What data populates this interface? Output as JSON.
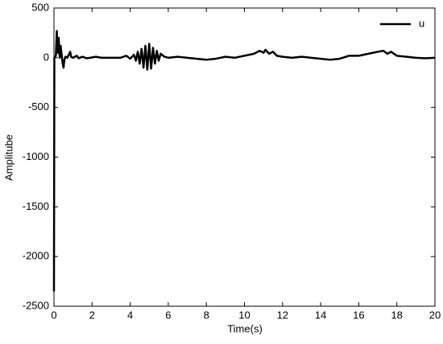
{
  "chart_data": {
    "type": "line",
    "xlabel": "Time(s)",
    "ylabel": "Amplitube",
    "x": [
      0,
      0.02,
      0.1,
      0.15,
      0.2,
      0.25,
      0.3,
      0.35,
      0.45,
      0.5,
      0.55,
      0.6,
      0.7,
      0.8,
      0.85,
      0.9,
      1.0,
      1.2,
      1.3,
      1.5,
      1.7,
      1.9,
      2.2,
      2.5,
      3,
      3.5,
      3.8,
      4.0,
      4.2,
      4.3,
      4.4,
      4.5,
      4.6,
      4.7,
      4.8,
      4.9,
      5.0,
      5.1,
      5.2,
      5.3,
      5.4,
      5.5,
      5.6,
      5.8,
      6.0,
      6.5,
      7,
      7.5,
      8,
      8.5,
      9,
      9.5,
      10,
      10.5,
      10.8,
      11,
      11.1,
      11.3,
      11.5,
      11.7,
      12,
      12.5,
      13,
      13.5,
      14,
      14.5,
      15,
      15.5,
      16,
      16.5,
      17,
      17.3,
      17.5,
      17.7,
      18,
      18.5,
      19,
      19.5,
      20
    ],
    "series": [
      {
        "name": "u",
        "color": "#000000",
        "values": [
          -2350,
          0,
          20,
          270,
          50,
          200,
          0,
          120,
          -50,
          -100,
          -20,
          10,
          0,
          40,
          60,
          10,
          0,
          20,
          -5,
          10,
          -5,
          0,
          10,
          0,
          0,
          0,
          20,
          -10,
          30,
          -30,
          60,
          -60,
          90,
          -100,
          120,
          -120,
          140,
          -110,
          100,
          -60,
          70,
          -30,
          40,
          10,
          0,
          10,
          0,
          -10,
          -20,
          -10,
          10,
          0,
          20,
          40,
          70,
          50,
          80,
          40,
          60,
          20,
          10,
          0,
          10,
          0,
          -10,
          -20,
          -10,
          20,
          20,
          40,
          60,
          70,
          40,
          60,
          20,
          10,
          0,
          -5,
          0
        ]
      }
    ],
    "xlim": [
      0,
      20
    ],
    "xticks": [
      0,
      2,
      4,
      6,
      8,
      10,
      12,
      14,
      16,
      18,
      20
    ],
    "ylim": [
      -2500,
      500
    ],
    "yticks": [
      -2500,
      -2000,
      -1500,
      -1000,
      -500,
      0,
      500
    ],
    "legend": "upper right"
  }
}
